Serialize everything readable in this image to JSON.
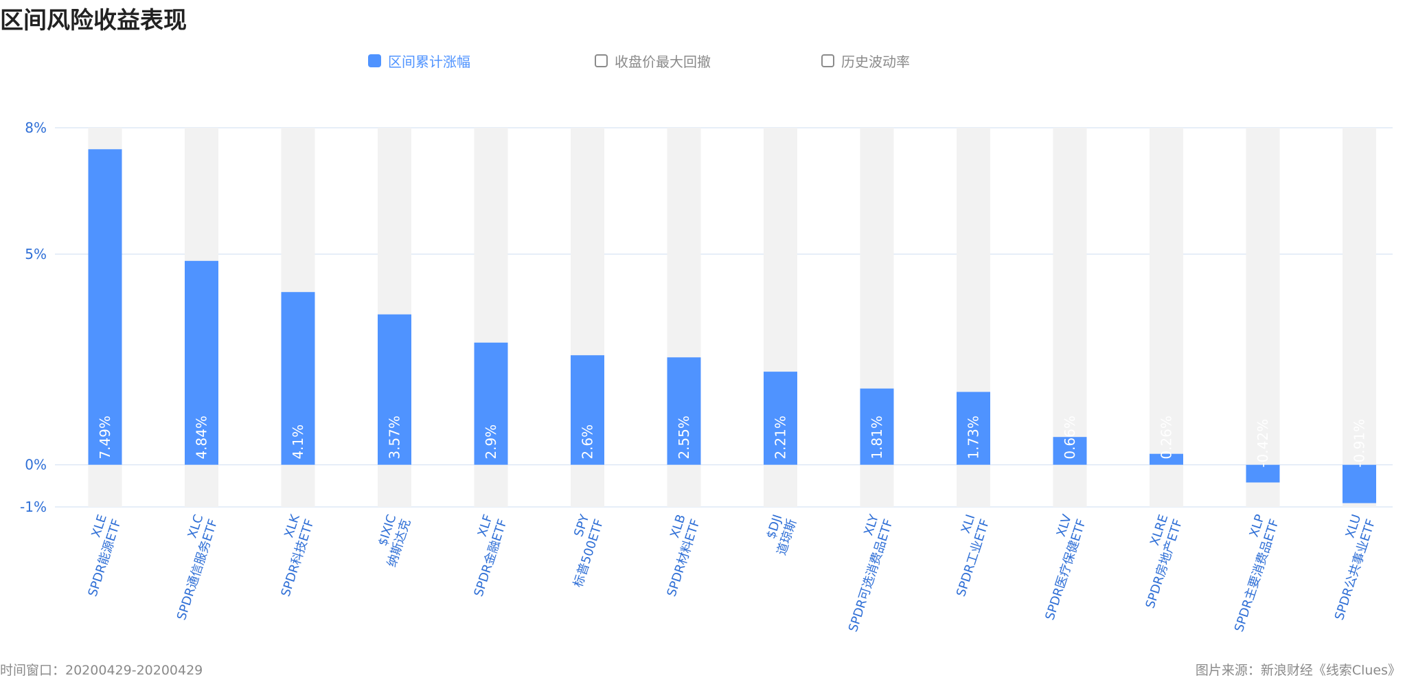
{
  "page": {
    "title": "区间风险收益表现",
    "footer_left": "时间窗口：20200429-20200429",
    "footer_right": "图片来源：新浪财经《线索Clues》"
  },
  "legend": [
    {
      "label": "区间累计涨幅",
      "active": true
    },
    {
      "label": "收盘价最大回撤",
      "active": false
    },
    {
      "label": "历史波动率",
      "active": false
    }
  ],
  "colors": {
    "bar": "#4f93ff",
    "bar_background": "#f2f2f2",
    "axis_label": "#2f6fd6",
    "grid": "#dde8f5",
    "legend_inactive": "#8a8a8a"
  },
  "chart_data": {
    "type": "bar",
    "title": "区间风险收益表现",
    "series": [
      {
        "name": "区间累计涨幅",
        "values": [
          7.49,
          4.84,
          4.1,
          3.57,
          2.9,
          2.6,
          2.55,
          2.21,
          1.81,
          1.73,
          0.66,
          0.26,
          -0.42,
          -0.91
        ]
      }
    ],
    "categories": [
      {
        "code": "XLE",
        "name": "SPDR能源ETF"
      },
      {
        "code": "XLC",
        "name": "SPDR通信服务ETF"
      },
      {
        "code": "XLK",
        "name": "SPDR科技ETF"
      },
      {
        "code": "$IXIC",
        "name": "纳斯达克"
      },
      {
        "code": "XLF",
        "name": "SPDR金融ETF"
      },
      {
        "code": "SPY",
        "name": "标普500ETF"
      },
      {
        "code": "XLB",
        "name": "SPDR材料ETF"
      },
      {
        "code": "$DJI",
        "name": "道琼斯"
      },
      {
        "code": "XLY",
        "name": "SPDR可选消费品ETF"
      },
      {
        "code": "XLI",
        "name": "SPDR工业ETF"
      },
      {
        "code": "XLV",
        "name": "SPDR医疗保健ETF"
      },
      {
        "code": "XLRE",
        "name": "SPDR房地产ETF"
      },
      {
        "code": "XLP",
        "name": "SPDR主要消费品ETF"
      },
      {
        "code": "XLU",
        "name": "SPDR公共事业ETF"
      }
    ],
    "value_labels": [
      "7.49%",
      "4.84%",
      "4.1%",
      "3.57%",
      "2.9%",
      "2.6%",
      "2.55%",
      "2.21%",
      "1.81%",
      "1.73%",
      "0.66%",
      "0.26%",
      "-0.42%",
      "-0.91%"
    ],
    "y_ticks": [
      {
        "value": 8,
        "label": "8%"
      },
      {
        "value": 5,
        "label": "5%"
      },
      {
        "value": 0,
        "label": "0%"
      },
      {
        "value": -1,
        "label": "-1%"
      }
    ],
    "ylim": [
      -1,
      8
    ],
    "xlabel": "",
    "ylabel": "",
    "grid": true,
    "legend_position": "top-center"
  }
}
